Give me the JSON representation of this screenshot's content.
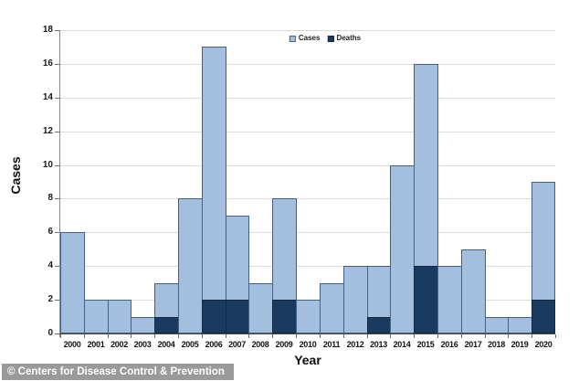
{
  "chart_data": {
    "type": "bar",
    "subtype": "stacked-overlay",
    "title": "",
    "xlabel": "Year",
    "ylabel": "Cases",
    "ylim": [
      0,
      18
    ],
    "yticks": [
      0,
      2,
      4,
      6,
      8,
      10,
      12,
      14,
      16,
      18
    ],
    "grid": true,
    "legend_position": "top-center",
    "categories": [
      "2000",
      "2001",
      "2002",
      "2003",
      "2004",
      "2005",
      "2006",
      "2007",
      "2008",
      "2009",
      "2010",
      "2011",
      "2012",
      "2013",
      "2014",
      "2015",
      "2016",
      "2017",
      "2018",
      "2019",
      "2020"
    ],
    "series": [
      {
        "name": "Cases",
        "color": "#a4bedd",
        "border": "#44618a",
        "values": [
          6,
          2,
          2,
          1,
          3,
          8,
          17,
          7,
          3,
          8,
          2,
          3,
          4,
          4,
          10,
          16,
          4,
          5,
          1,
          1,
          9
        ]
      },
      {
        "name": "Deaths",
        "color": "#1b3a5f",
        "border": "#122843",
        "values": [
          0,
          0,
          0,
          0,
          1,
          0,
          2,
          2,
          0,
          2,
          0,
          0,
          0,
          1,
          0,
          4,
          0,
          0,
          0,
          0,
          2
        ]
      }
    ]
  },
  "attribution": "© Centers for Disease Control & Prevention",
  "colors": {
    "gridline": "#dcdcdc",
    "axis": "#8c8c8c",
    "baseline": "#4a4a4a",
    "tick": "#6e6e6e",
    "attribution_bg": "#9a9a9a",
    "attribution_text": "#ffffff"
  }
}
